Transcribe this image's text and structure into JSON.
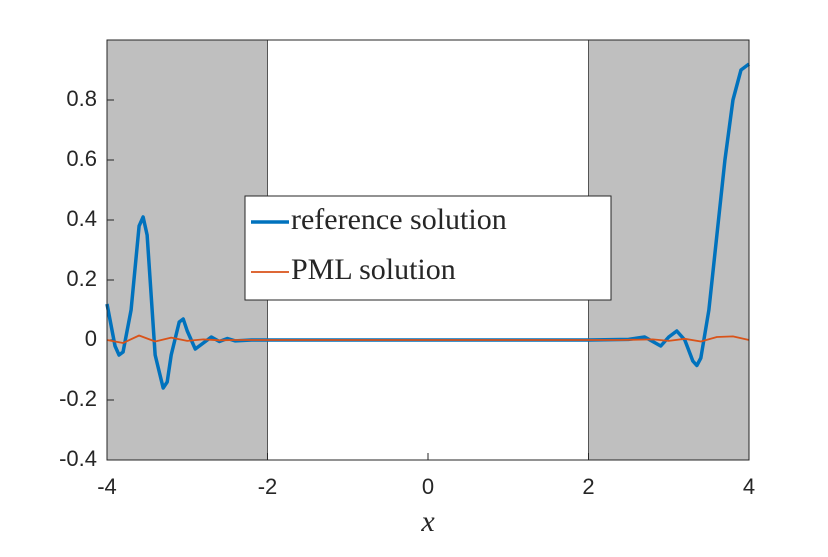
{
  "chart_data": {
    "type": "line",
    "xlabel": "x",
    "xlim": [
      -4,
      4
    ],
    "ylim": [
      -0.4,
      1
    ],
    "xticks": [
      -4,
      -2,
      0,
      2,
      4
    ],
    "yticks": [
      -0.4,
      -0.2,
      0,
      0.2,
      0.4,
      0.6,
      0.8
    ],
    "shaded_regions": [
      [
        -4,
        -2
      ],
      [
        2,
        4
      ]
    ],
    "shade_color": "#bfbfbf",
    "legend": "center",
    "series": [
      {
        "name": "reference solution",
        "color": "#0072bd",
        "x": [
          -4,
          -3.9,
          -3.85,
          -3.8,
          -3.7,
          -3.6,
          -3.55,
          -3.5,
          -3.45,
          -3.4,
          -3.3,
          -3.25,
          -3.2,
          -3.1,
          -3.05,
          -3,
          -2.9,
          -2.8,
          -2.7,
          -2.6,
          -2.5,
          -2.4,
          -2.2,
          2,
          2.5,
          2.7,
          2.8,
          2.9,
          3,
          3.1,
          3.2,
          3.3,
          3.35,
          3.4,
          3.5,
          3.6,
          3.7,
          3.8,
          3.9,
          4
        ],
        "values": [
          0.12,
          -0.02,
          -0.05,
          -0.04,
          0.1,
          0.38,
          0.41,
          0.35,
          0.15,
          -0.05,
          -0.16,
          -0.14,
          -0.05,
          0.06,
          0.07,
          0.03,
          -0.03,
          -0.01,
          0.01,
          -0.005,
          0.005,
          -0.003,
          0,
          0,
          0.002,
          0.01,
          -0.005,
          -0.02,
          0.01,
          0.03,
          0,
          -0.07,
          -0.085,
          -0.06,
          0.1,
          0.35,
          0.6,
          0.8,
          0.9,
          0.92
        ]
      },
      {
        "name": "PML solution",
        "color": "#d95319",
        "x": [
          -4,
          -3.8,
          -3.6,
          -3.4,
          -3.2,
          -3,
          -2.8,
          -2.6,
          -2.4,
          2.4,
          2.8,
          3,
          3.2,
          3.4,
          3.6,
          3.8,
          4
        ],
        "values": [
          0,
          -0.01,
          0.015,
          -0.005,
          0.008,
          -0.003,
          0.002,
          -0.001,
          0,
          0,
          0.002,
          -0.003,
          0.004,
          -0.005,
          0.01,
          0.012,
          0
        ]
      }
    ]
  }
}
